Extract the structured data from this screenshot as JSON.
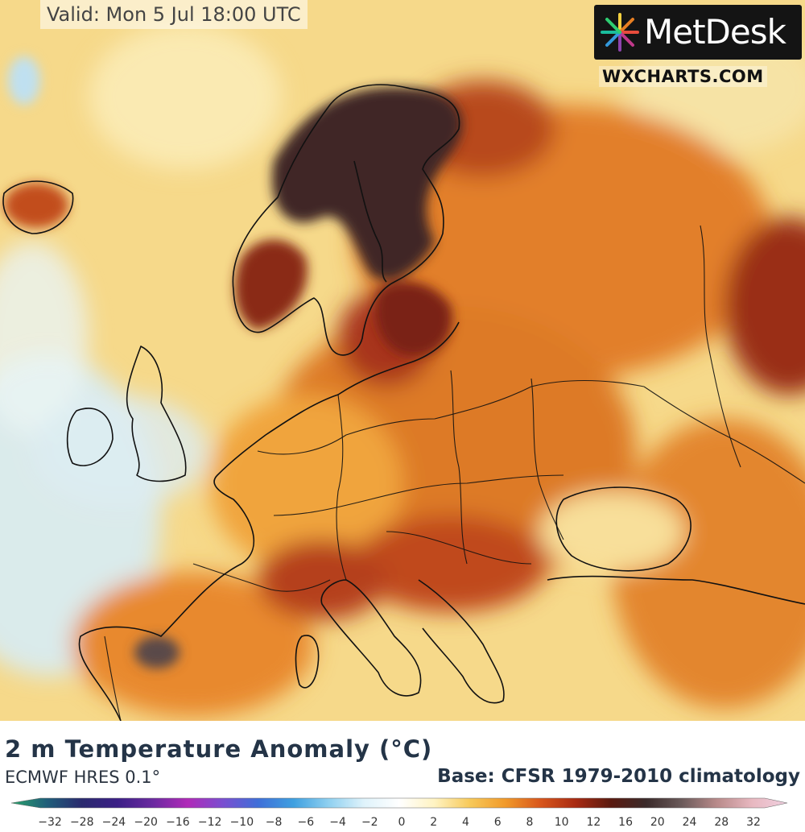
{
  "valid_time": "Valid: Mon 5 Jul 18:00 UTC",
  "brand": {
    "name": "MetDesk",
    "site": "WXCHARTS.COM",
    "logo_icon": "starburst-logo-icon"
  },
  "title": "2 m Temperature Anomaly (°C)",
  "subtitle": "ECMWF HRES 0.1°",
  "base": "Base: CFSR 1979-2010 climatology",
  "colorbar": {
    "ticks": [
      "−32",
      "−28",
      "−24",
      "−20",
      "−16",
      "−12",
      "−10",
      "−8",
      "−6",
      "−4",
      "−2",
      "0",
      "2",
      "4",
      "6",
      "8",
      "10",
      "12",
      "16",
      "20",
      "24",
      "28",
      "32"
    ],
    "stops": [
      "#2aa36b",
      "#1f5f7a",
      "#2a2a6e",
      "#3b1f86",
      "#6a2aa0",
      "#b02ab8",
      "#7a4fd0",
      "#3f6fd8",
      "#3fa0e0",
      "#8fd0f0",
      "#dff3fb",
      "#ffffff",
      "#fff3c2",
      "#f7c95a",
      "#f19a2a",
      "#d8561c",
      "#a82a12",
      "#5a1a10",
      "#3a2a2a",
      "#6a5a5a",
      "#b88a8a",
      "#e8b8c0",
      "#f0d0e0"
    ]
  },
  "colors": {
    "map_base": "#f6d98a",
    "warm": "#e8832a",
    "hot": "#b8361a",
    "extreme": "#4a2a2a",
    "cool": "#bcdcf0",
    "border": "#111111"
  }
}
